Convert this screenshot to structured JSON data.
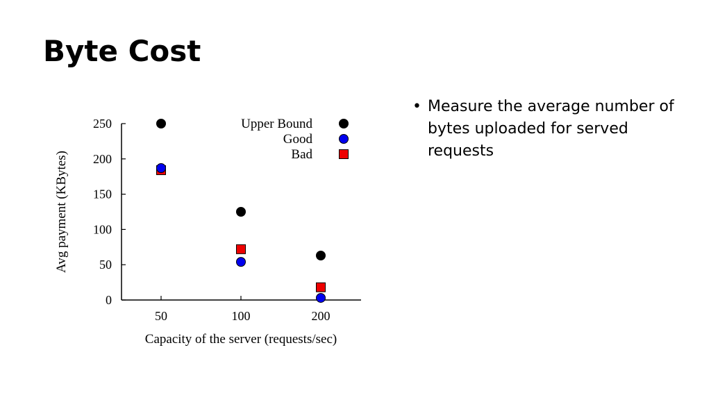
{
  "slide": {
    "title": "Byte Cost",
    "bullets": [
      "Measure the average number of bytes uploaded for served requests"
    ]
  },
  "chart_data": {
    "type": "scatter",
    "title": "",
    "xlabel": "Capacity of the server (requests/sec)",
    "ylabel": "Avg payment (KBytes)",
    "categories": [
      "50",
      "100",
      "200"
    ],
    "ylim": [
      0,
      250
    ],
    "yticks": [
      0,
      50,
      100,
      150,
      200,
      250
    ],
    "grid": false,
    "legend_position": "top-right",
    "series": [
      {
        "name": "Upper Bound",
        "marker": "circle",
        "color": "#000000",
        "values": [
          250,
          125,
          63
        ]
      },
      {
        "name": "Good",
        "marker": "circle",
        "color": "#0000ee",
        "values": [
          187,
          54,
          3
        ]
      },
      {
        "name": "Bad",
        "marker": "square",
        "color": "#ee0000",
        "values": [
          184,
          72,
          18
        ]
      }
    ]
  }
}
